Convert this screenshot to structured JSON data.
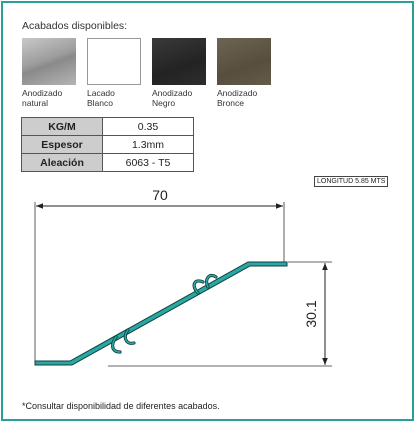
{
  "finishes": {
    "heading": "Acabados disponibles:",
    "items": [
      {
        "label": "Anodizado\nnatural",
        "color": "#a3a3a3"
      },
      {
        "label": "Lacado\nBlanco",
        "color": "#ffffff"
      },
      {
        "label": "Anodizado\nNegro",
        "color": "#2b2b2b"
      },
      {
        "label": "Anodizado\nBronce",
        "color": "#5f5646"
      }
    ]
  },
  "specs": {
    "rows": [
      {
        "key": "KG/M",
        "value": "0.35"
      },
      {
        "key": "Espesor",
        "value": "1.3mm"
      },
      {
        "key": "Aleación",
        "value": "6063 - T5"
      }
    ]
  },
  "drawing": {
    "length_label": "LONGITUD 5.85 MTS",
    "width_dimension": "70",
    "height_dimension": "30.1",
    "profile_color": "#2aa7a3"
  },
  "footnote": "*Consultar disponibilidad de diferentes acabados."
}
